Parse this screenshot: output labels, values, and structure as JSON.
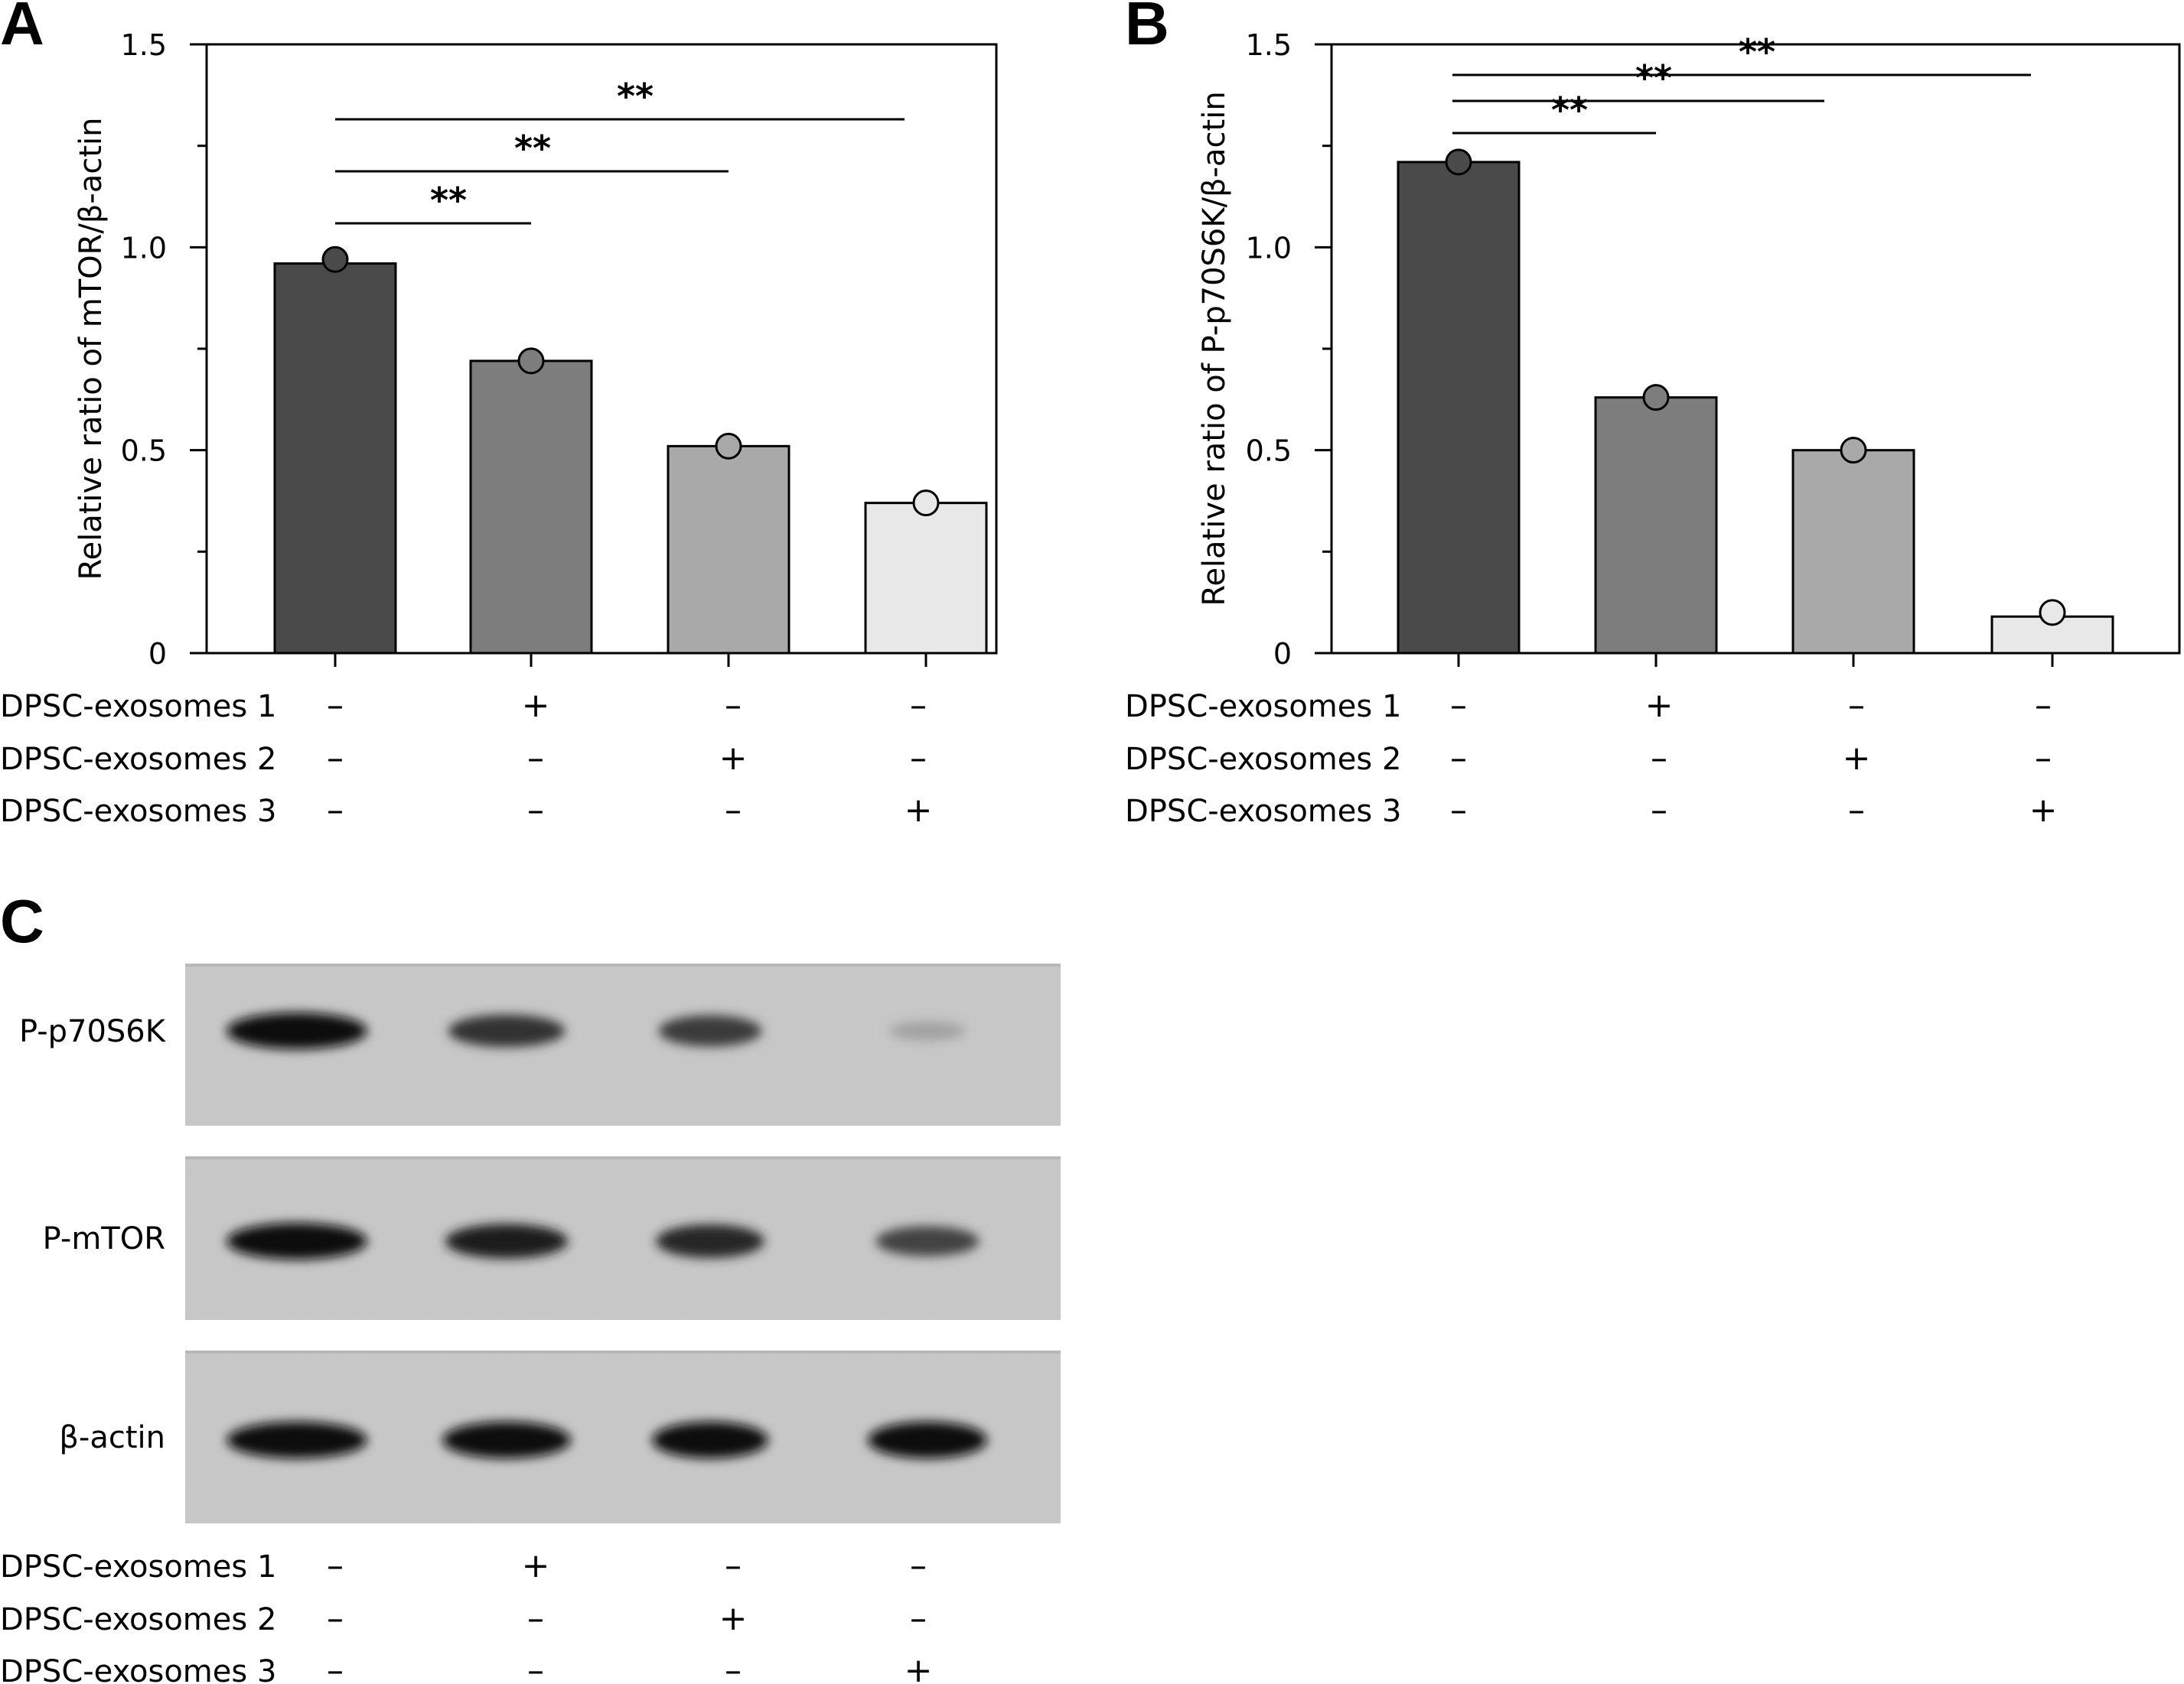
{
  "panels": {
    "A": "A",
    "B": "B",
    "C": "C"
  },
  "treatment_rows": [
    "DPSC-exosomes 1",
    "DPSC-exosomes 2",
    "DPSC-exosomes 3"
  ],
  "treatment_signs": [
    [
      "–",
      "+",
      "–",
      "–"
    ],
    [
      "–",
      "–",
      "+",
      "–"
    ],
    [
      "–",
      "–",
      "–",
      "+"
    ]
  ],
  "bar_colors": [
    "#4a4a4a",
    "#7d7d7d",
    "#a9a9a9",
    "#e8e8e8"
  ],
  "chart_data": [
    {
      "panel": "A",
      "type": "bar",
      "categories": [
        "1",
        "2",
        "3",
        "4"
      ],
      "values": [
        0.96,
        0.72,
        0.51,
        0.37
      ],
      "points": [
        0.97,
        0.72,
        0.51,
        0.37
      ],
      "ylabel": "Relative ratio of mTOR/β-actin",
      "ylim": [
        0,
        1.5
      ],
      "yticks": [
        "0",
        "0.5",
        "1.0",
        "1.5"
      ],
      "ytick_values": [
        0,
        0.5,
        1.0,
        1.5
      ],
      "grid": false,
      "significance": [
        {
          "from": 0,
          "to": 1,
          "label": "**"
        },
        {
          "from": 0,
          "to": 2,
          "label": "**"
        },
        {
          "from": 0,
          "to": 3,
          "label": "**"
        }
      ]
    },
    {
      "panel": "B",
      "type": "bar",
      "categories": [
        "1",
        "2",
        "3",
        "4"
      ],
      "values": [
        1.21,
        0.63,
        0.5,
        0.09
      ],
      "points": [
        1.21,
        0.63,
        0.5,
        0.1
      ],
      "ylabel": "Relative ratio of P-p70S6K/β-actin",
      "ylim": [
        0,
        1.5
      ],
      "yticks": [
        "0",
        "0.5",
        "1.0",
        "1.5"
      ],
      "ytick_values": [
        0,
        0.5,
        1.0,
        1.5
      ],
      "grid": false,
      "significance": [
        {
          "from": 0,
          "to": 1,
          "label": "**"
        },
        {
          "from": 0,
          "to": 2,
          "label": "**"
        },
        {
          "from": 0,
          "to": 3,
          "label": "**"
        }
      ]
    }
  ],
  "western_blot": {
    "rows": [
      {
        "label": "P-p70S6K",
        "intensities": [
          1.0,
          0.8,
          0.75,
          0.2
        ]
      },
      {
        "label": "P-mTOR",
        "intensities": [
          1.0,
          0.9,
          0.85,
          0.7
        ]
      },
      {
        "label": "β-actin",
        "intensities": [
          1.0,
          1.0,
          1.0,
          1.0
        ]
      }
    ]
  }
}
